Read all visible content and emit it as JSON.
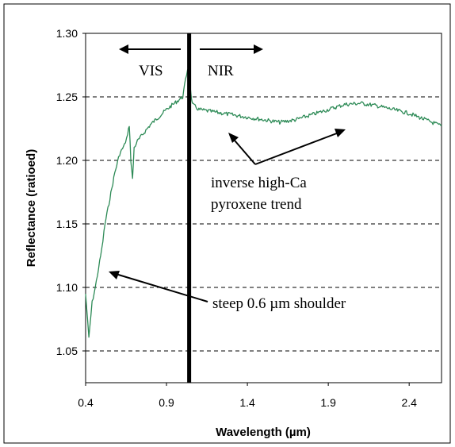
{
  "chart_data": {
    "type": "line",
    "title": "",
    "xlabel": "Wavelength (µm)",
    "ylabel": "Reflectance (ratioed)",
    "xlim": [
      0.4,
      2.6
    ],
    "ylim": [
      1.025,
      1.3
    ],
    "x_ticks": [
      "0.4",
      "0.9",
      "1.4",
      "1.9",
      "2.4"
    ],
    "y_ticks": [
      "1.05",
      "1.10",
      "1.15",
      "1.20",
      "1.25",
      "1.30"
    ],
    "grid": "horizontal dashed",
    "series": [
      {
        "name": "",
        "color": "#2e8b57",
        "x": [
          0.4,
          0.42,
          0.44,
          0.46,
          0.48,
          0.5,
          0.52,
          0.55,
          0.58,
          0.61,
          0.64,
          0.66,
          0.67,
          0.68,
          0.69,
          0.7,
          0.72,
          0.75,
          0.8,
          0.85,
          0.9,
          0.95,
          1.0,
          1.03,
          1.06,
          1.1,
          1.2,
          1.3,
          1.4,
          1.5,
          1.6,
          1.7,
          1.8,
          1.9,
          2.0,
          2.1,
          2.2,
          2.3,
          2.4,
          2.5,
          2.6
        ],
        "y": [
          1.095,
          1.06,
          1.088,
          1.1,
          1.115,
          1.13,
          1.15,
          1.17,
          1.19,
          1.205,
          1.212,
          1.22,
          1.228,
          1.2,
          1.185,
          1.21,
          1.215,
          1.22,
          1.228,
          1.234,
          1.24,
          1.245,
          1.25,
          1.272,
          1.244,
          1.24,
          1.238,
          1.236,
          1.234,
          1.232,
          1.23,
          1.232,
          1.236,
          1.24,
          1.244,
          1.245,
          1.243,
          1.24,
          1.237,
          1.232,
          1.227
        ]
      }
    ],
    "divider_x": 1.04,
    "annotations": {
      "vis": "VIS",
      "nir": "NIR",
      "trend_line1": "inverse high-Ca",
      "trend_line2": "pyroxene trend",
      "shoulder": "steep 0.6 µm shoulder"
    }
  }
}
